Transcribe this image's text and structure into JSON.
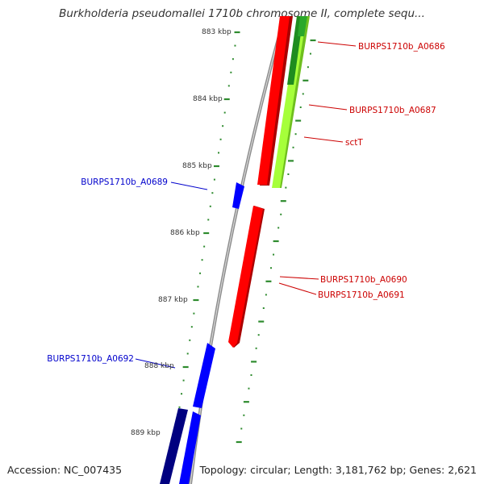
{
  "header": {
    "title": "Burkholderia pseudomallei 1710b chromosome II, complete sequ..."
  },
  "footer": {
    "accession": "Accession: NC_007435",
    "info": "Topology: circular; Length: 3,181,762 bp; Genes: 2,621"
  },
  "map": {
    "kbp_labels": [
      "883 kbp",
      "884 kbp",
      "885 kbp",
      "886 kbp",
      "887 kbp",
      "888 kbp",
      "889 kbp"
    ],
    "colors": {
      "backbone": "#8c8c8c",
      "ticks": "#2e8b2e",
      "forward_label": "#cc0000",
      "reverse_label": "#0000cc",
      "red": "#ff0000",
      "light_green": "#a6ff3a",
      "dark_green": "#1f8c1f",
      "blue": "#0000ff",
      "navy": "#000080"
    },
    "genes": [
      {
        "label": "BURPS1710b_A0686",
        "strand": "forward",
        "color": "dark_green"
      },
      {
        "label": "BURPS1710b_A0687",
        "strand": "forward",
        "color": "light_green"
      },
      {
        "label": "sctT",
        "strand": "forward",
        "color": "light_green"
      },
      {
        "label": "BURPS1710b_A0689",
        "strand": "reverse",
        "color": "blue"
      },
      {
        "label": "BURPS1710b_A0690",
        "strand": "forward",
        "color": "red"
      },
      {
        "label": "BURPS1710b_A0691",
        "strand": "forward",
        "color": "red"
      },
      {
        "label": "BURPS1710b_A0692",
        "strand": "reverse",
        "color": "blue"
      }
    ]
  }
}
